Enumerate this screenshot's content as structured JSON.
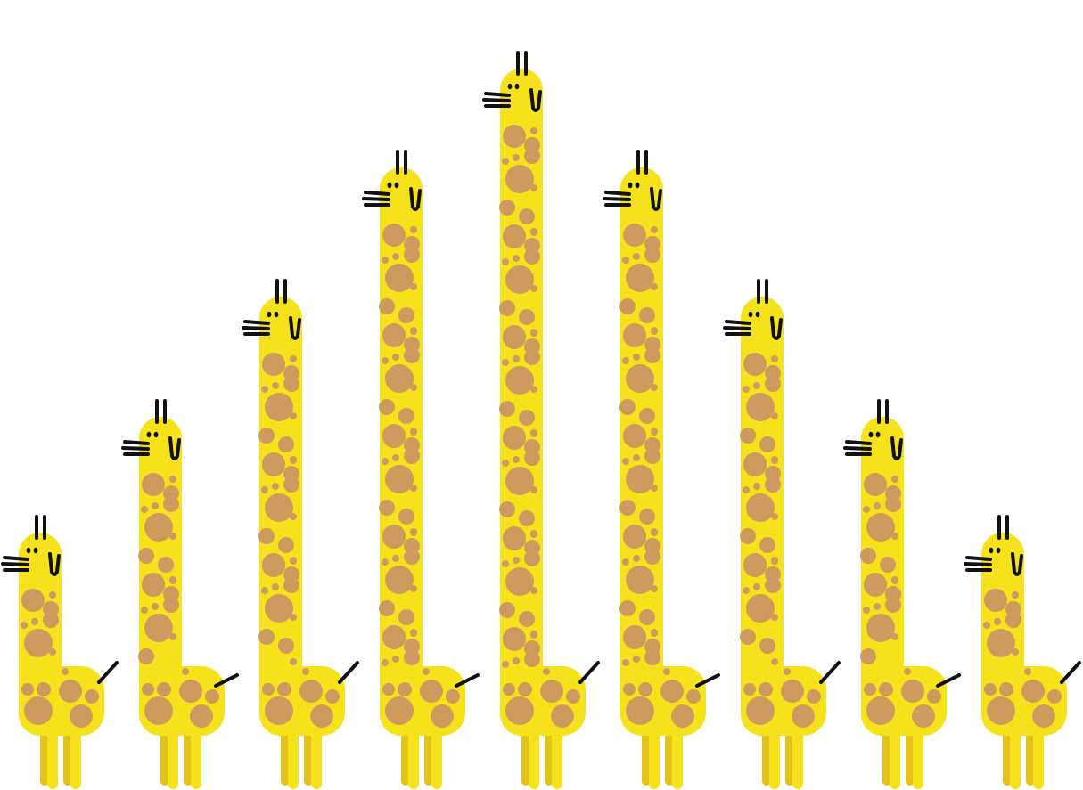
{
  "scene": {
    "subject": "giraffe",
    "count": 9,
    "arrangement": "pyramid-by-height",
    "colors": {
      "background": "#ffffff",
      "body": "#f5e21b",
      "leg_back": "#e3c31a",
      "spot": "#cf9a5e",
      "ink": "#111111"
    },
    "neck_heights": [
      {
        "label": "shortest",
        "value": 1
      },
      {
        "label": "short",
        "value": 2
      },
      {
        "label": "medium",
        "value": 3
      },
      {
        "label": "tall",
        "value": 4
      },
      {
        "label": "tallest",
        "value": 5
      },
      {
        "label": "tall",
        "value": 4
      },
      {
        "label": "medium",
        "value": 3
      },
      {
        "label": "short",
        "value": 2
      },
      {
        "label": "shortest",
        "value": 1
      }
    ]
  }
}
